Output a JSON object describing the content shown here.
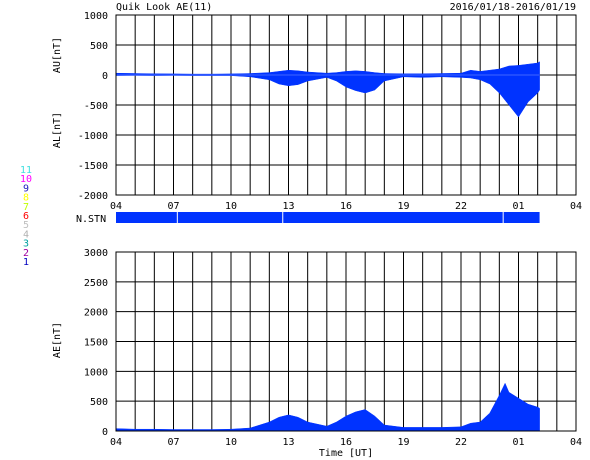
{
  "header": {
    "title": "Quik Look AE(11)",
    "date_range": "2016/01/18-2016/01/19"
  },
  "station_legend": {
    "label": "N.STN",
    "items": [
      {
        "label": "11",
        "color": "#40e0e0"
      },
      {
        "label": "10",
        "color": "#ff00ff"
      },
      {
        "label": "9",
        "color": "#2020c0"
      },
      {
        "label": "8",
        "color": "#ffff00"
      },
      {
        "label": "7",
        "color": "#c0ff00"
      },
      {
        "label": "6",
        "color": "#ff0000"
      },
      {
        "label": "5",
        "color": "#c0c0c0"
      },
      {
        "label": "4",
        "color": "#b0b0b0"
      },
      {
        "label": "3",
        "color": "#00a0a0"
      },
      {
        "label": "2",
        "color": "#a000a0"
      },
      {
        "label": "1",
        "color": "#0000c0"
      }
    ]
  },
  "colors": {
    "fill": "#0033ff",
    "grid": "#000000",
    "background": "#ffffff"
  },
  "chart_data": [
    {
      "type": "area",
      "name": "AU/AL",
      "ylabel_upper": "AU[nT]",
      "ylabel_lower": "AL[nT]",
      "xlabel": "",
      "xlim": [
        4,
        28
      ],
      "ylim": [
        -2000,
        1000
      ],
      "yticks": [
        1000,
        500,
        0,
        -500,
        -1000,
        -1500,
        -2000
      ],
      "xtick_labels": [
        "04",
        "07",
        "10",
        "13",
        "16",
        "19",
        "22",
        "01",
        "04"
      ],
      "grid": true,
      "data_end_hour": 26.1,
      "au": {
        "x": [
          4,
          5,
          6,
          7,
          8,
          9,
          10,
          11,
          12,
          12.5,
          13,
          13.5,
          14,
          15,
          15.5,
          16,
          16.5,
          17,
          17.5,
          18,
          19,
          20,
          21,
          22,
          22.5,
          23,
          23.5,
          24,
          24.5,
          25,
          25.5,
          26,
          26.1
        ],
        "y": [
          30,
          25,
          20,
          18,
          15,
          15,
          18,
          25,
          40,
          60,
          80,
          70,
          50,
          30,
          40,
          60,
          70,
          60,
          40,
          25,
          20,
          20,
          25,
          30,
          80,
          60,
          80,
          100,
          150,
          160,
          180,
          200,
          220
        ]
      },
      "al": {
        "x": [
          4,
          5,
          6,
          7,
          8,
          9,
          10,
          11,
          12,
          12.5,
          13,
          13.5,
          14,
          15,
          15.5,
          16,
          16.5,
          17,
          17.5,
          18,
          19,
          20,
          21,
          22,
          22.5,
          23,
          23.5,
          24,
          24.5,
          25,
          25.5,
          26,
          26.1
        ],
        "y": [
          -10,
          -8,
          -10,
          -8,
          -10,
          -10,
          -10,
          -30,
          -80,
          -150,
          -180,
          -160,
          -100,
          -40,
          -100,
          -200,
          -260,
          -300,
          -250,
          -100,
          -30,
          -40,
          -30,
          -40,
          -50,
          -80,
          -150,
          -300,
          -500,
          -700,
          -450,
          -300,
          -250
        ]
      }
    },
    {
      "type": "area",
      "name": "AE",
      "ylabel": "AE[nT]",
      "xlabel": "Time [UT]",
      "xlim": [
        4,
        28
      ],
      "ylim": [
        0,
        3000
      ],
      "yticks": [
        3000,
        2500,
        2000,
        1500,
        1000,
        500,
        0
      ],
      "xtick_labels": [
        "04",
        "07",
        "10",
        "13",
        "16",
        "19",
        "22",
        "01",
        "04"
      ],
      "grid": true,
      "data_end_hour": 26.1,
      "ae": {
        "x": [
          4,
          5,
          6,
          7,
          8,
          9,
          10,
          11,
          11.5,
          12,
          12.5,
          13,
          13.5,
          14,
          15,
          15.5,
          16,
          16.5,
          17,
          17.5,
          18,
          19,
          20,
          21,
          22,
          22.5,
          23,
          23.5,
          24,
          24.3,
          24.5,
          25,
          25.5,
          26,
          26.1
        ],
        "y": [
          40,
          30,
          30,
          25,
          25,
          25,
          30,
          50,
          100,
          150,
          230,
          270,
          230,
          150,
          80,
          150,
          250,
          320,
          360,
          250,
          100,
          60,
          60,
          60,
          70,
          130,
          150,
          300,
          600,
          800,
          650,
          550,
          450,
          400,
          380
        ]
      }
    }
  ]
}
